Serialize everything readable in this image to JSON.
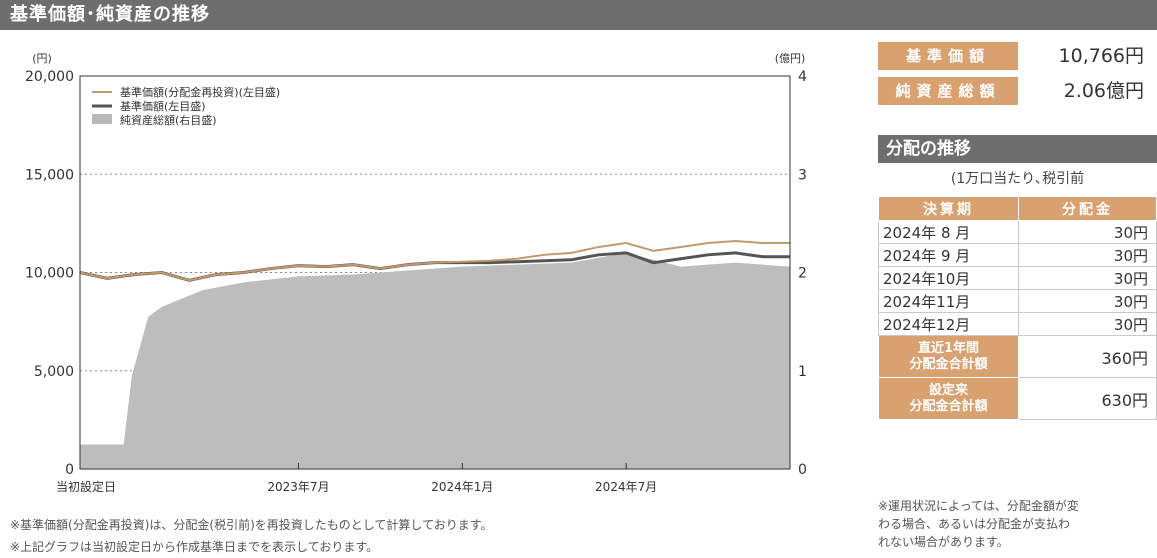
{
  "header": {
    "title": "基準価額･純資産の推移"
  },
  "chart_data": {
    "type": "line",
    "left_axis_unit": "(円)",
    "right_axis_unit": "(億円)",
    "y_left_ticks": [
      "0",
      "5,000",
      "10,000",
      "15,000",
      "20,000"
    ],
    "y_right_ticks": [
      "0",
      "1",
      "2",
      "3",
      "4"
    ],
    "ylim_left": [
      0,
      20000
    ],
    "ylim_right": [
      0,
      4
    ],
    "x_ticks": [
      {
        "label": "当初設定日",
        "t": 0
      },
      {
        "label": "2023年7月",
        "t": 8
      },
      {
        "label": "2024年1月",
        "t": 14
      },
      {
        "label": "2024年7月",
        "t": 20
      }
    ],
    "x_range": [
      0,
      26
    ],
    "legend": [
      {
        "name": "基準価額(分配金再投資)(左目盛)",
        "color": "#c39a6b",
        "kind": "line"
      },
      {
        "name": "基準価額(左目盛)",
        "color": "#555555",
        "kind": "line"
      },
      {
        "name": "純資産総額(右目盛)",
        "color": "#b9b9b9",
        "kind": "area"
      }
    ],
    "legend_position": "top-left",
    "grid": "horizontal-dotted",
    "series": [
      {
        "name": "基準価額(分配金再投資)(左目盛)",
        "axis": "left",
        "x": [
          0,
          1,
          2,
          3,
          4,
          5,
          6,
          7,
          8,
          9,
          10,
          11,
          12,
          13,
          14,
          15,
          16,
          17,
          18,
          19,
          20,
          21,
          22,
          23,
          24,
          25,
          26
        ],
        "values": [
          10000,
          9700,
          9900,
          10000,
          9600,
          9900,
          10000,
          10200,
          10350,
          10300,
          10400,
          10200,
          10400,
          10500,
          10550,
          10600,
          10700,
          10900,
          11000,
          11300,
          11500,
          11100,
          11300,
          11500,
          11600,
          11500,
          11500
        ]
      },
      {
        "name": "基準価額(左目盛)",
        "axis": "left",
        "x": [
          0,
          1,
          2,
          3,
          4,
          5,
          6,
          7,
          8,
          9,
          10,
          11,
          12,
          13,
          14,
          15,
          16,
          17,
          18,
          19,
          20,
          21,
          22,
          23,
          24,
          25,
          26
        ],
        "values": [
          10000,
          9700,
          9900,
          10000,
          9600,
          9900,
          10000,
          10200,
          10350,
          10300,
          10400,
          10200,
          10400,
          10500,
          10500,
          10500,
          10550,
          10600,
          10650,
          10900,
          11000,
          10500,
          10700,
          10900,
          11000,
          10800,
          10800
        ]
      },
      {
        "name": "純資産総額(右目盛)",
        "axis": "right",
        "x": [
          0,
          1,
          1.6,
          1.9,
          2.5,
          3,
          3.6,
          4.5,
          6,
          8,
          10,
          12,
          14,
          16,
          18,
          20,
          22,
          24,
          26
        ],
        "values": [
          0.25,
          0.25,
          0.25,
          0.95,
          1.55,
          1.65,
          1.72,
          1.82,
          1.9,
          1.96,
          1.98,
          2.02,
          2.06,
          2.08,
          2.1,
          2.2,
          2.06,
          2.1,
          2.06
        ]
      }
    ]
  },
  "notes": [
    "※基準価額(分配金再投資)は、分配金(税引前)を再投資したものとして計算しております。",
    "※上記グラフは当初設定日から作成基準日までを表示しております。"
  ],
  "summary": {
    "nav_label": "基準価額",
    "nav_value": "10,766円",
    "assets_label": "純資産総額",
    "assets_value": "2.06億円"
  },
  "distribution": {
    "title": "分配の推移",
    "unit_note": "(1万口当たり､税引前",
    "col_period": "決算期",
    "col_amount": "分配金",
    "rows": [
      {
        "period": "2024年 8 月",
        "amount": "30円"
      },
      {
        "period": "2024年 9 月",
        "amount": "30円"
      },
      {
        "period": "2024年10月",
        "amount": "30円"
      },
      {
        "period": "2024年11月",
        "amount": "30円"
      },
      {
        "period": "2024年12月",
        "amount": "30円"
      }
    ],
    "recent_label_1": "直近1年間",
    "recent_label_2": "分配金合計額",
    "recent_value": "360円",
    "since_label_1": "設定来",
    "since_label_2": "分配金合計額",
    "since_value": "630円",
    "note_lines": [
      "※運用状況によっては、分配金額が変",
      "わる場合、あるいは分配金が支払わ",
      "れない場合があります。"
    ]
  }
}
